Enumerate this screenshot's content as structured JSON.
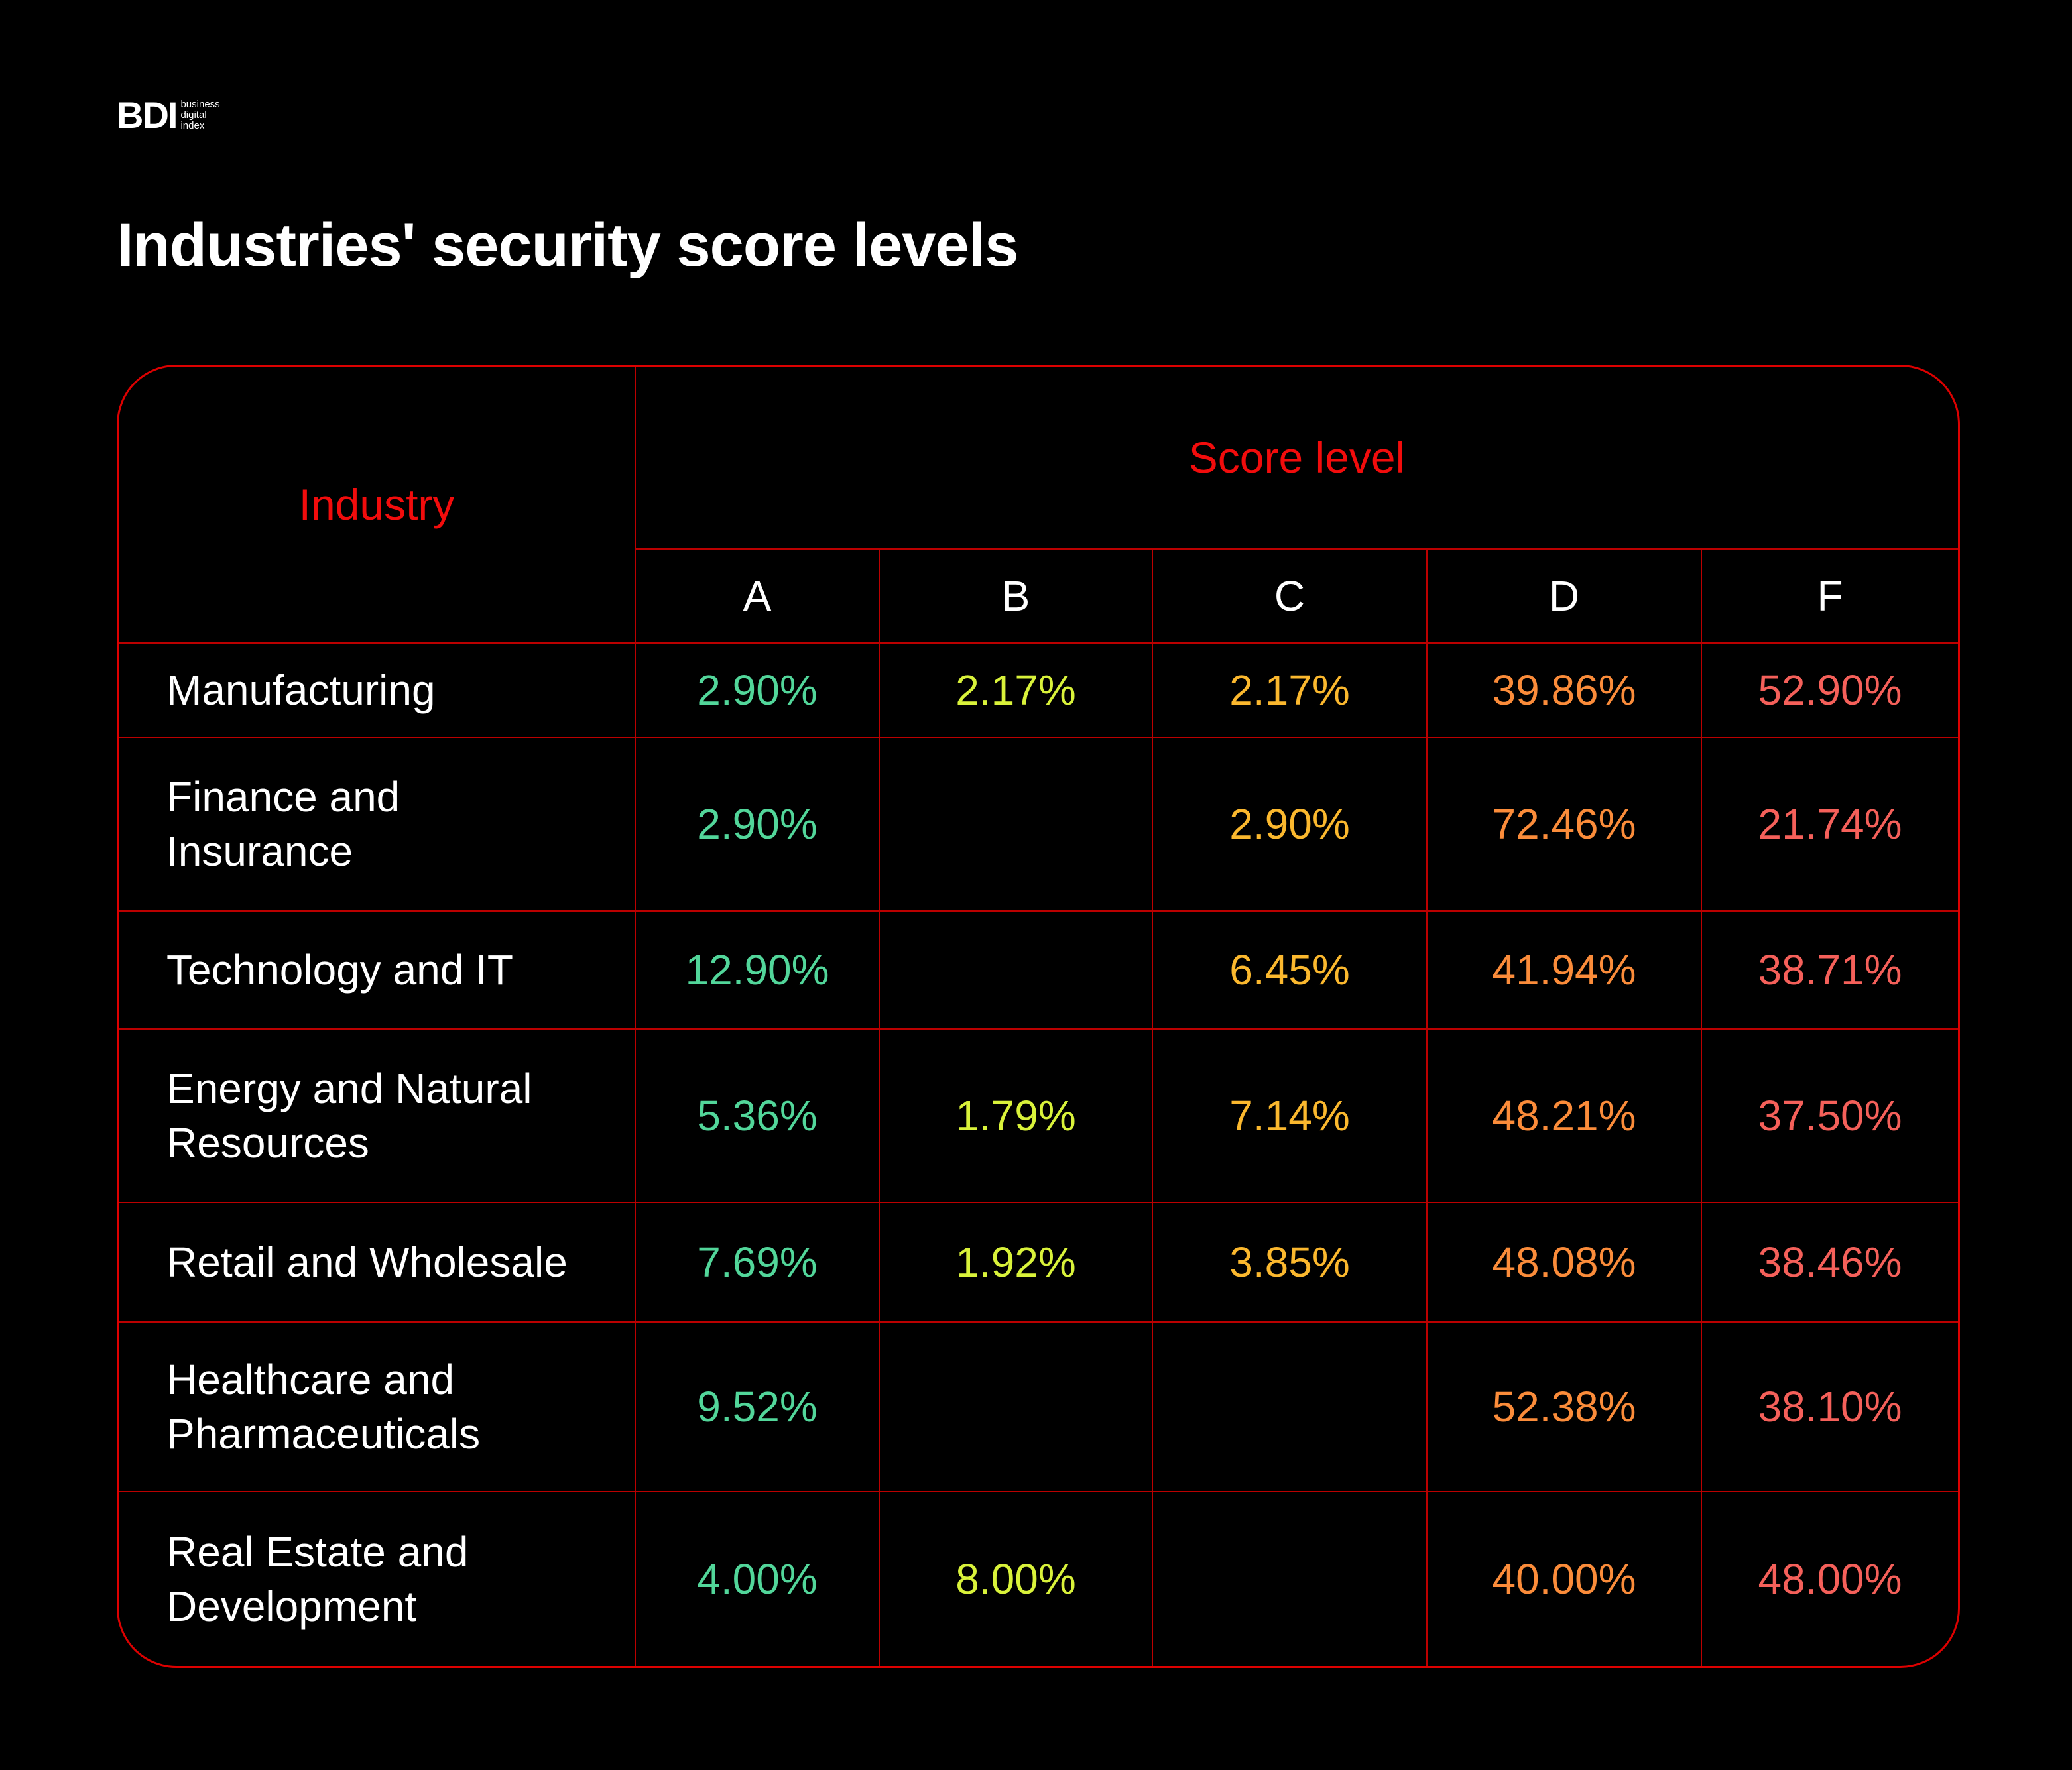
{
  "logo": {
    "mark": "BDI",
    "lines": [
      "business",
      "digital",
      "index"
    ]
  },
  "title": "Industries' security score levels",
  "table": {
    "industry_header": "Industry",
    "score_header": "Score level",
    "levels": [
      "A",
      "B",
      "C",
      "D",
      "F"
    ],
    "colors": {
      "A": "#52d69a",
      "B": "#d9f23a",
      "C": "#fbb82e",
      "D": "#fb8c3a",
      "F": "#f5605a",
      "grid": "#cc0000",
      "header": "#f20c0c"
    },
    "rows": [
      {
        "industry": "Manufacturing",
        "values": [
          "2.90%",
          "2.17%",
          "2.17%",
          "39.86%",
          "52.90%"
        ]
      },
      {
        "industry": "Finance and Insurance",
        "values": [
          "2.90%",
          "",
          "2.90%",
          "72.46%",
          "21.74%"
        ]
      },
      {
        "industry": "Technology and IT",
        "values": [
          "12.90%",
          "",
          "6.45%",
          "41.94%",
          "38.71%"
        ]
      },
      {
        "industry": "Energy and Natural Resources",
        "values": [
          "5.36%",
          "1.79%",
          "7.14%",
          "48.21%",
          "37.50%"
        ]
      },
      {
        "industry": "Retail and Wholesale",
        "values": [
          "7.69%",
          "1.92%",
          "3.85%",
          "48.08%",
          "38.46%"
        ]
      },
      {
        "industry": "Healthcare and Pharmaceuticals",
        "values": [
          "9.52%",
          "",
          "",
          "52.38%",
          "38.10%"
        ]
      },
      {
        "industry": "Real Estate and Development",
        "values": [
          "4.00%",
          "8.00%",
          "",
          "40.00%",
          "48.00%"
        ]
      }
    ]
  }
}
